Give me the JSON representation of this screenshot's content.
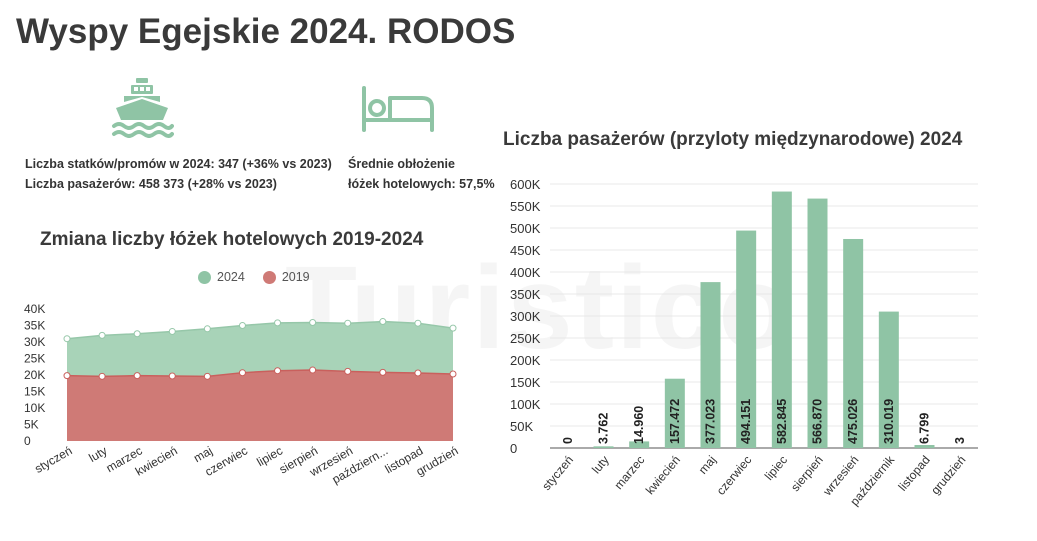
{
  "page": {
    "title": "Wyspy Egejskie 2024. RODOS",
    "watermark": "Turistico"
  },
  "icons": {
    "ship": "ship-icon",
    "bed": "bed-icon"
  },
  "stats": {
    "ships_line": "Liczba statków/promów w 2024: 347 (+36% vs 2023)",
    "passengers_line": "Liczba pasażerów: 458 373  (+28% vs 2023)",
    "occupancy_line1": "Średnie obłożenie",
    "occupancy_line2": "łóżek hotelowych: 57,5%"
  },
  "colors": {
    "green": "#8fc4a5",
    "red": "#cf7a76",
    "text": "#333333"
  },
  "chart_data": [
    {
      "type": "area",
      "title": "Zmiana liczby łóżek hotelowych 2019-2024",
      "categories": [
        "styczeń",
        "luty",
        "marzec",
        "kwiecień",
        "maj",
        "czerwiec",
        "lipiec",
        "sierpień",
        "wrzesień",
        "październik",
        "listopad",
        "grudzień"
      ],
      "category_labels": [
        "styczeń",
        "luty",
        "marzec",
        "kwiecień",
        "maj",
        "czerwiec",
        "lipiec",
        "sierpień",
        "wrzesień",
        "październ...",
        "listopad",
        "grudzień"
      ],
      "series": [
        {
          "name": "2024",
          "color": "#8fc4a5",
          "values": [
            31000,
            32000,
            32500,
            33200,
            34000,
            35000,
            35800,
            35900,
            35700,
            36200,
            35700,
            34200
          ]
        },
        {
          "name": "2019",
          "color": "#cf7a76",
          "values": [
            19800,
            19600,
            19800,
            19700,
            19600,
            20700,
            21300,
            21500,
            21100,
            20800,
            20600,
            20300
          ]
        }
      ],
      "y_ticks": [
        "40K",
        "35K",
        "30K",
        "25K",
        "20K",
        "15K",
        "10K",
        "5K",
        "0"
      ],
      "ylim": [
        0,
        40000
      ],
      "legend": "top",
      "grid": false
    },
    {
      "type": "bar",
      "title": "Liczba pasażerów (przyloty międzynarodowe) 2024",
      "categories": [
        "styczeń",
        "luty",
        "marzec",
        "kwiecień",
        "maj",
        "czerwiec",
        "lipiec",
        "sierpień",
        "wrzesień",
        "październik",
        "listopad",
        "grudzień"
      ],
      "values": [
        0,
        3762,
        14960,
        157472,
        377023,
        494151,
        582845,
        566870,
        475026,
        310019,
        6799,
        3
      ],
      "value_labels": [
        "0",
        "3.762",
        "14.960",
        "157.472",
        "377.023",
        "494.151",
        "582.845",
        "566.870",
        "475.026",
        "310.019",
        "6.799",
        "3"
      ],
      "y_ticks": [
        "600K",
        "550K",
        "500K",
        "450K",
        "400K",
        "350K",
        "300K",
        "250K",
        "200K",
        "150K",
        "100K",
        "50K",
        "0"
      ],
      "ylim": [
        0,
        600000
      ],
      "color": "#8fc4a5",
      "grid": true
    }
  ]
}
